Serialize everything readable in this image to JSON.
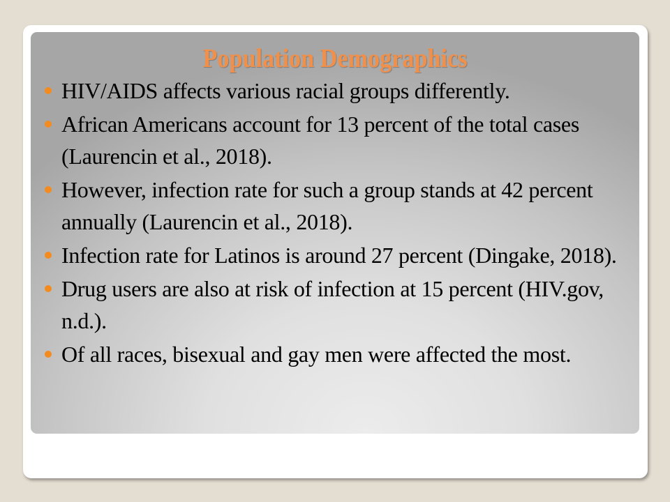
{
  "slide": {
    "title": "Population Demographics",
    "bullet_color": "#f38b1f",
    "title_color": "#f0904a",
    "bullets": [
      "HIV/AIDS affects various racial groups differently.",
      "African Americans account for 13 percent of the total cases (Laurencin et al., 2018).",
      "However, infection rate for such a group stands at 42 percent annually (Laurencin et al., 2018).",
      "Infection rate for Latinos is around 27 percent (Dingake, 2018).",
      "Drug users are also at risk of infection at 15 percent (HIV.gov, n.d.).",
      "Of all races, bisexual and gay men were affected the most."
    ]
  }
}
